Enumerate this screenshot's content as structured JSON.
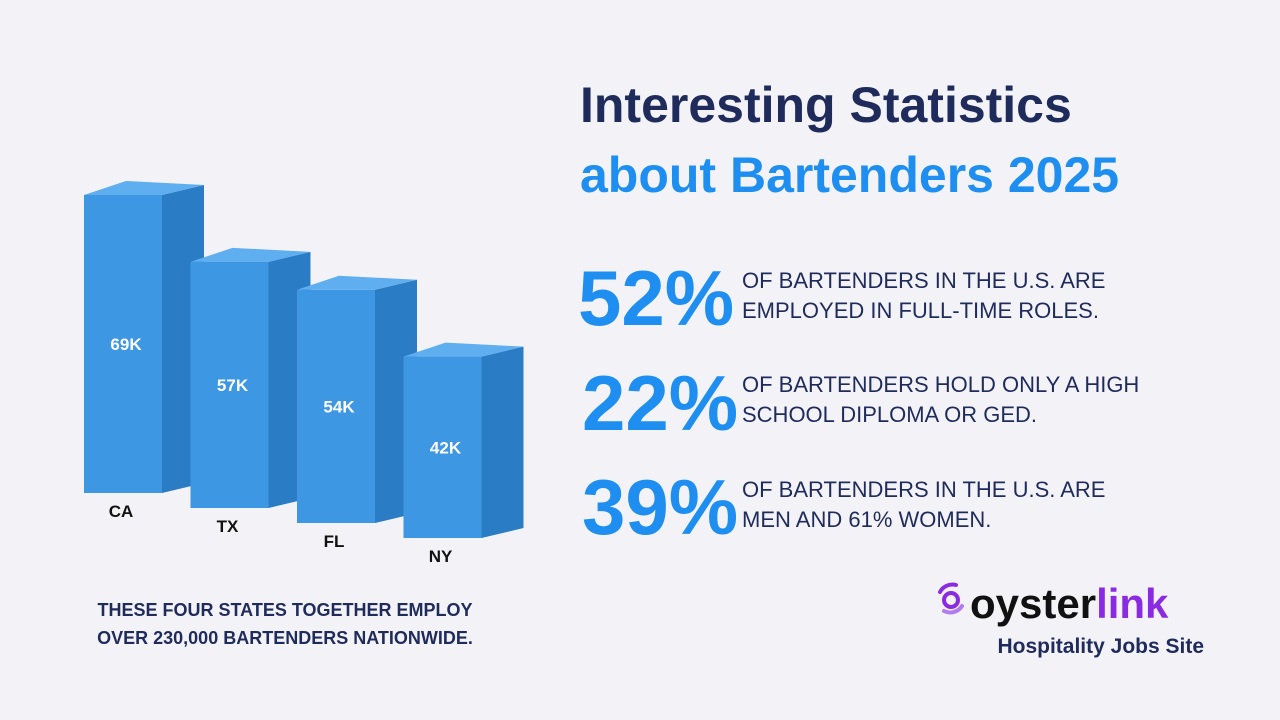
{
  "chart_data": {
    "type": "bar3d",
    "categories": [
      "CA",
      "TX",
      "FL",
      "NY"
    ],
    "values": [
      69000,
      57000,
      54000,
      42000
    ],
    "value_labels": [
      "69K",
      "57K",
      "54K",
      "42K"
    ],
    "color": "#3d97e3"
  },
  "header": {
    "line1": "Interesting Statistics",
    "line2": "about Bartenders 2025"
  },
  "stats": [
    {
      "figure": "52%",
      "lines": [
        "OF BARTENDERS IN THE U.S. ARE",
        "EMPLOYED IN FULL-TIME ROLES."
      ]
    },
    {
      "figure": "22%",
      "lines": [
        "OF BARTENDERS HOLD ONLY A HIGH",
        "SCHOOL DIPLOMA OR GED."
      ]
    },
    {
      "figure": "39%",
      "lines": [
        "OF BARTENDERS IN THE U.S. ARE",
        "MEN AND 61% WOMEN."
      ]
    }
  ],
  "note": {
    "lines": [
      "THESE FOUR STATES TOGETHER EMPLOY",
      "OVER 230,000 BARTENDERS NATIONWIDE."
    ]
  },
  "brand": {
    "name_a": "oyster",
    "name_b": "link",
    "tagline": "Hospitality Jobs Site"
  }
}
